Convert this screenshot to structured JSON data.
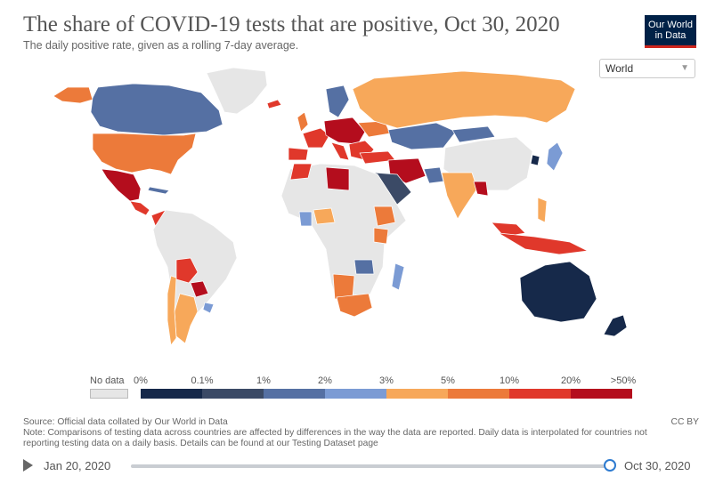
{
  "header": {
    "title": "The share of COVID-19 tests that are positive, Oct 30, 2020",
    "subtitle": "The daily positive rate, given as a rolling 7-day average.",
    "logo_line1": "Our World",
    "logo_line2": "in Data",
    "region_select": "World"
  },
  "legend": {
    "no_data_label": "No data",
    "no_data_color": "#e6e6e6",
    "ticks": [
      "0%",
      "0.1%",
      "1%",
      "2%",
      "3%",
      "5%",
      "10%",
      "20%",
      ">50%"
    ],
    "colors": [
      "#16294a",
      "#3b4a66",
      "#5570a3",
      "#7b9bd4",
      "#f7a85a",
      "#ec7a3a",
      "#e0382b",
      "#b40d1d"
    ]
  },
  "footer": {
    "source": "Source: Official data collated by Our World in Data",
    "note": "Note: Comparisons of testing data across countries are affected by differences in the way the data are reported. Daily data is interpolated for countries not reporting testing data on a daily basis. Details can be found at our Testing Dataset page",
    "license": "CC BY"
  },
  "timeline": {
    "start_date": "Jan 20, 2020",
    "end_date": "Oct 30, 2020",
    "position": 1.0
  }
}
